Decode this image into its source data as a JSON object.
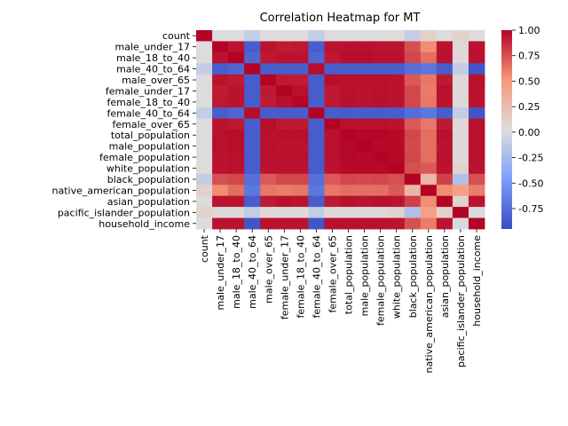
{
  "chart_data": {
    "type": "heatmap",
    "title": "Correlation Heatmap for MT",
    "xlabel": "",
    "ylabel": "",
    "colormap": "coolwarm",
    "vmin": -0.95,
    "vmax": 1.0,
    "colorbar_ticks": [
      "1.00",
      "0.75",
      "0.50",
      "0.25",
      "0.00",
      "-0.25",
      "-0.50",
      "-0.75"
    ],
    "colorbar_tick_values": [
      1.0,
      0.75,
      0.5,
      0.25,
      0.0,
      -0.25,
      -0.5,
      -0.75
    ],
    "labels": [
      "count",
      "male_under_17",
      "male_18_to_40",
      "male_40_to_64",
      "male_over_65",
      "female_under_17",
      "female_18_to_40",
      "female_40_to_64",
      "female_over_65",
      "total_population",
      "male_population",
      "female_population",
      "white_population",
      "black_population",
      "native_american_population",
      "asian_population",
      "pacific_islander_population",
      "household_income"
    ],
    "matrix": [
      [
        1.0,
        0.02,
        0.02,
        -0.1,
        0.02,
        0.03,
        0.02,
        -0.1,
        0.02,
        0.03,
        0.03,
        0.03,
        0.04,
        -0.1,
        0.12,
        0.02,
        0.1,
        0.03
      ],
      [
        0.02,
        1.0,
        0.95,
        -0.85,
        0.95,
        0.92,
        0.93,
        -0.85,
        0.95,
        0.96,
        0.96,
        0.95,
        0.95,
        0.75,
        0.55,
        0.95,
        0.05,
        0.95
      ],
      [
        0.02,
        0.95,
        1.0,
        -0.8,
        0.93,
        0.95,
        0.95,
        -0.8,
        0.93,
        0.97,
        0.97,
        0.96,
        0.96,
        0.78,
        0.65,
        0.95,
        0.05,
        0.95
      ],
      [
        -0.1,
        -0.85,
        -0.8,
        1.0,
        -0.85,
        -0.85,
        -0.85,
        0.97,
        -0.85,
        -0.85,
        -0.85,
        -0.85,
        -0.85,
        -0.75,
        -0.7,
        -0.85,
        -0.1,
        -0.9
      ],
      [
        0.02,
        0.95,
        0.93,
        -0.85,
        1.0,
        0.93,
        0.92,
        -0.85,
        0.97,
        0.96,
        0.96,
        0.96,
        0.95,
        0.72,
        0.62,
        0.93,
        0.05,
        0.96
      ],
      [
        0.03,
        0.92,
        0.95,
        -0.85,
        0.93,
        1.0,
        0.96,
        -0.85,
        0.93,
        0.96,
        0.95,
        0.96,
        0.95,
        0.78,
        0.6,
        0.96,
        0.05,
        0.95
      ],
      [
        0.02,
        0.93,
        0.95,
        -0.85,
        0.92,
        0.96,
        1.0,
        -0.85,
        0.93,
        0.96,
        0.95,
        0.96,
        0.95,
        0.78,
        0.62,
        0.95,
        0.05,
        0.95
      ],
      [
        -0.1,
        -0.85,
        -0.8,
        0.97,
        -0.85,
        -0.85,
        -0.85,
        1.0,
        -0.85,
        -0.85,
        -0.85,
        -0.85,
        -0.85,
        -0.75,
        -0.7,
        -0.85,
        -0.1,
        -0.9
      ],
      [
        0.02,
        0.95,
        0.93,
        -0.85,
        0.97,
        0.93,
        0.93,
        -0.85,
        1.0,
        0.96,
        0.96,
        0.96,
        0.95,
        0.72,
        0.62,
        0.93,
        0.05,
        0.96
      ],
      [
        0.03,
        0.96,
        0.97,
        -0.85,
        0.96,
        0.96,
        0.96,
        -0.85,
        0.96,
        1.0,
        0.99,
        0.99,
        0.98,
        0.78,
        0.65,
        0.96,
        0.05,
        0.96
      ],
      [
        0.03,
        0.96,
        0.97,
        -0.85,
        0.96,
        0.95,
        0.95,
        -0.85,
        0.96,
        0.99,
        1.0,
        0.98,
        0.98,
        0.77,
        0.65,
        0.95,
        0.05,
        0.96
      ],
      [
        0.03,
        0.95,
        0.96,
        -0.85,
        0.96,
        0.96,
        0.96,
        -0.85,
        0.96,
        0.99,
        0.98,
        1.0,
        0.98,
        0.78,
        0.65,
        0.96,
        0.05,
        0.96
      ],
      [
        0.04,
        0.95,
        0.96,
        -0.85,
        0.95,
        0.95,
        0.95,
        -0.85,
        0.95,
        0.98,
        0.98,
        0.98,
        1.0,
        0.75,
        0.72,
        0.95,
        0.1,
        0.95
      ],
      [
        -0.1,
        0.75,
        0.78,
        -0.75,
        0.72,
        0.78,
        0.78,
        -0.75,
        0.72,
        0.78,
        0.77,
        0.78,
        0.75,
        1.0,
        0.3,
        0.8,
        -0.2,
        0.75
      ],
      [
        0.12,
        0.55,
        0.65,
        -0.7,
        0.62,
        0.6,
        0.62,
        -0.7,
        0.62,
        0.65,
        0.65,
        0.65,
        0.72,
        0.3,
        1.0,
        0.55,
        0.45,
        0.6
      ],
      [
        0.02,
        0.95,
        0.95,
        -0.85,
        0.93,
        0.96,
        0.95,
        -0.85,
        0.93,
        0.96,
        0.95,
        0.96,
        0.95,
        0.8,
        0.55,
        1.0,
        0.1,
        0.95
      ],
      [
        0.1,
        0.05,
        0.05,
        -0.1,
        0.05,
        0.05,
        0.05,
        -0.1,
        0.05,
        0.05,
        0.05,
        0.05,
        0.1,
        -0.2,
        0.45,
        0.1,
        1.0,
        0.0
      ],
      [
        0.03,
        0.95,
        0.95,
        -0.9,
        0.96,
        0.95,
        0.95,
        -0.9,
        0.96,
        0.96,
        0.96,
        0.96,
        0.95,
        0.75,
        0.6,
        0.95,
        0.0,
        1.0
      ]
    ]
  }
}
